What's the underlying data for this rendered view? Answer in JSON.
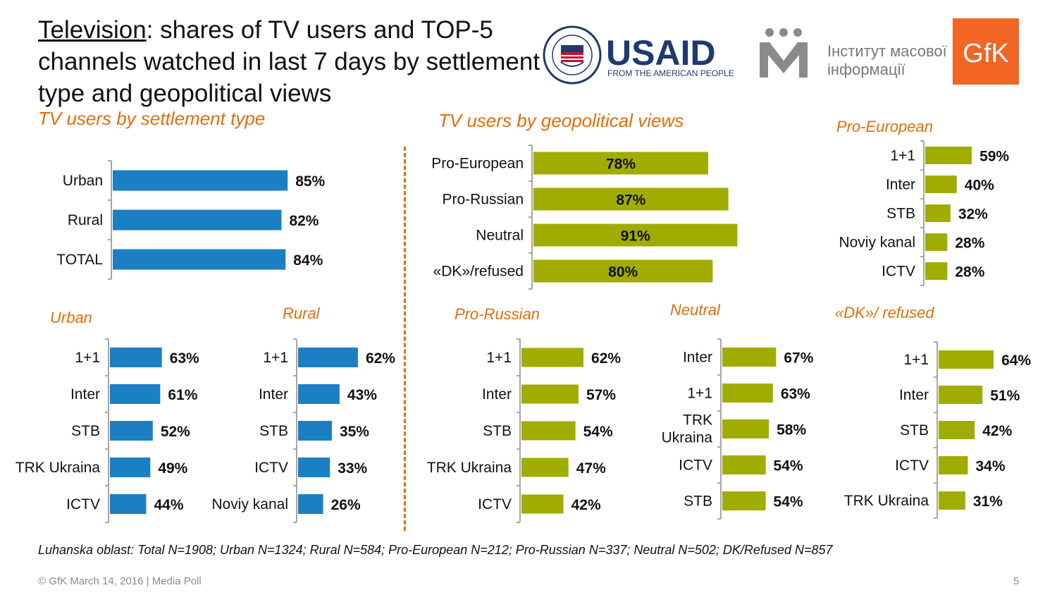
{
  "header": {
    "title_underlined": "Television",
    "title_rest": ": shares of TV users and TOP-5 channels watched in last 7 days by settlement type and geopolitical views",
    "subtitle_settlement": "TV users  by settlement type",
    "subtitle_geo": "TV users by geopolitical views"
  },
  "logos": {
    "usaid_word": "USAID",
    "usaid_tagline": "FROM THE AMERICAN PEOPLE",
    "imi_line1": "Інститут масової",
    "imi_line2": "інформації",
    "gfk": "GfK"
  },
  "colors": {
    "blue": "#1B7FC4",
    "olive": "#A1AC00",
    "accent": "#E36C0A",
    "axis": "#a6a6a6"
  },
  "note": "Luhanska oblast: Total N=1908; Urban N=1324; Rural N=584; Pro-European N=212; Pro-Russian N=337; Neutral N=502; DK/Refused N=857",
  "footer": {
    "copyright": "© GfK March 14, 2016 | Media Poll",
    "page": "5"
  },
  "chart_data": [
    {
      "id": "settlement",
      "type": "bar",
      "orientation": "horizontal",
      "title": "",
      "categories": [
        "Urban",
        "Rural",
        "TOTAL"
      ],
      "values": [
        85,
        82,
        84
      ],
      "value_labels": [
        "85%",
        "82%",
        "84%"
      ]
    },
    {
      "id": "geo",
      "type": "bar",
      "orientation": "horizontal",
      "title": "",
      "categories": [
        "Pro-European",
        "Pro-Russian",
        "Neutral",
        "«DK»/refused"
      ],
      "values": [
        78,
        87,
        91,
        80
      ],
      "value_labels": [
        "78%",
        "87%",
        "91%",
        "80%"
      ]
    },
    {
      "id": "pro_european",
      "type": "bar",
      "orientation": "horizontal",
      "title": "Pro-European",
      "categories": [
        "1+1",
        "Inter",
        "STB",
        "Noviy kanal",
        "ICTV"
      ],
      "values": [
        59,
        40,
        32,
        28,
        28
      ],
      "value_labels": [
        "59%",
        "40%",
        "32%",
        "28%",
        "28%"
      ]
    },
    {
      "id": "urban",
      "type": "bar",
      "orientation": "horizontal",
      "title": "Urban",
      "categories": [
        "1+1",
        "Inter",
        "STB",
        "TRK Ukraina",
        "ICTV"
      ],
      "values": [
        63,
        61,
        52,
        49,
        44
      ],
      "value_labels": [
        "63%",
        "61%",
        "52%",
        "49%",
        "44%"
      ]
    },
    {
      "id": "rural",
      "type": "bar",
      "orientation": "horizontal",
      "title": "Rural",
      "categories": [
        "1+1",
        "Inter",
        "STB",
        "ICTV",
        "Noviy kanal"
      ],
      "values": [
        62,
        43,
        35,
        33,
        26
      ],
      "value_labels": [
        "62%",
        "43%",
        "35%",
        "33%",
        "26%"
      ]
    },
    {
      "id": "pro_russian",
      "type": "bar",
      "orientation": "horizontal",
      "title": "Pro-Russian",
      "categories": [
        "1+1",
        "Inter",
        "STB",
        "TRK Ukraina",
        "ICTV"
      ],
      "values": [
        62,
        57,
        54,
        47,
        42
      ],
      "value_labels": [
        "62%",
        "57%",
        "54%",
        "47%",
        "42%"
      ]
    },
    {
      "id": "neutral",
      "type": "bar",
      "orientation": "horizontal",
      "title": "Neutral",
      "categories": [
        "Inter",
        "1+1",
        "TRK Ukraina",
        "ICTV",
        "STB"
      ],
      "values": [
        67,
        63,
        58,
        54,
        54
      ],
      "value_labels": [
        "67%",
        "63%",
        "58%",
        "54%",
        "54%"
      ]
    },
    {
      "id": "dk_refused",
      "type": "bar",
      "orientation": "horizontal",
      "title": "«DK»/ refused",
      "categories": [
        "1+1",
        "Inter",
        "STB",
        "ICTV",
        "TRK Ukraina"
      ],
      "values": [
        64,
        51,
        42,
        34,
        31
      ],
      "value_labels": [
        "64%",
        "51%",
        "42%",
        "34%",
        "31%"
      ]
    }
  ]
}
